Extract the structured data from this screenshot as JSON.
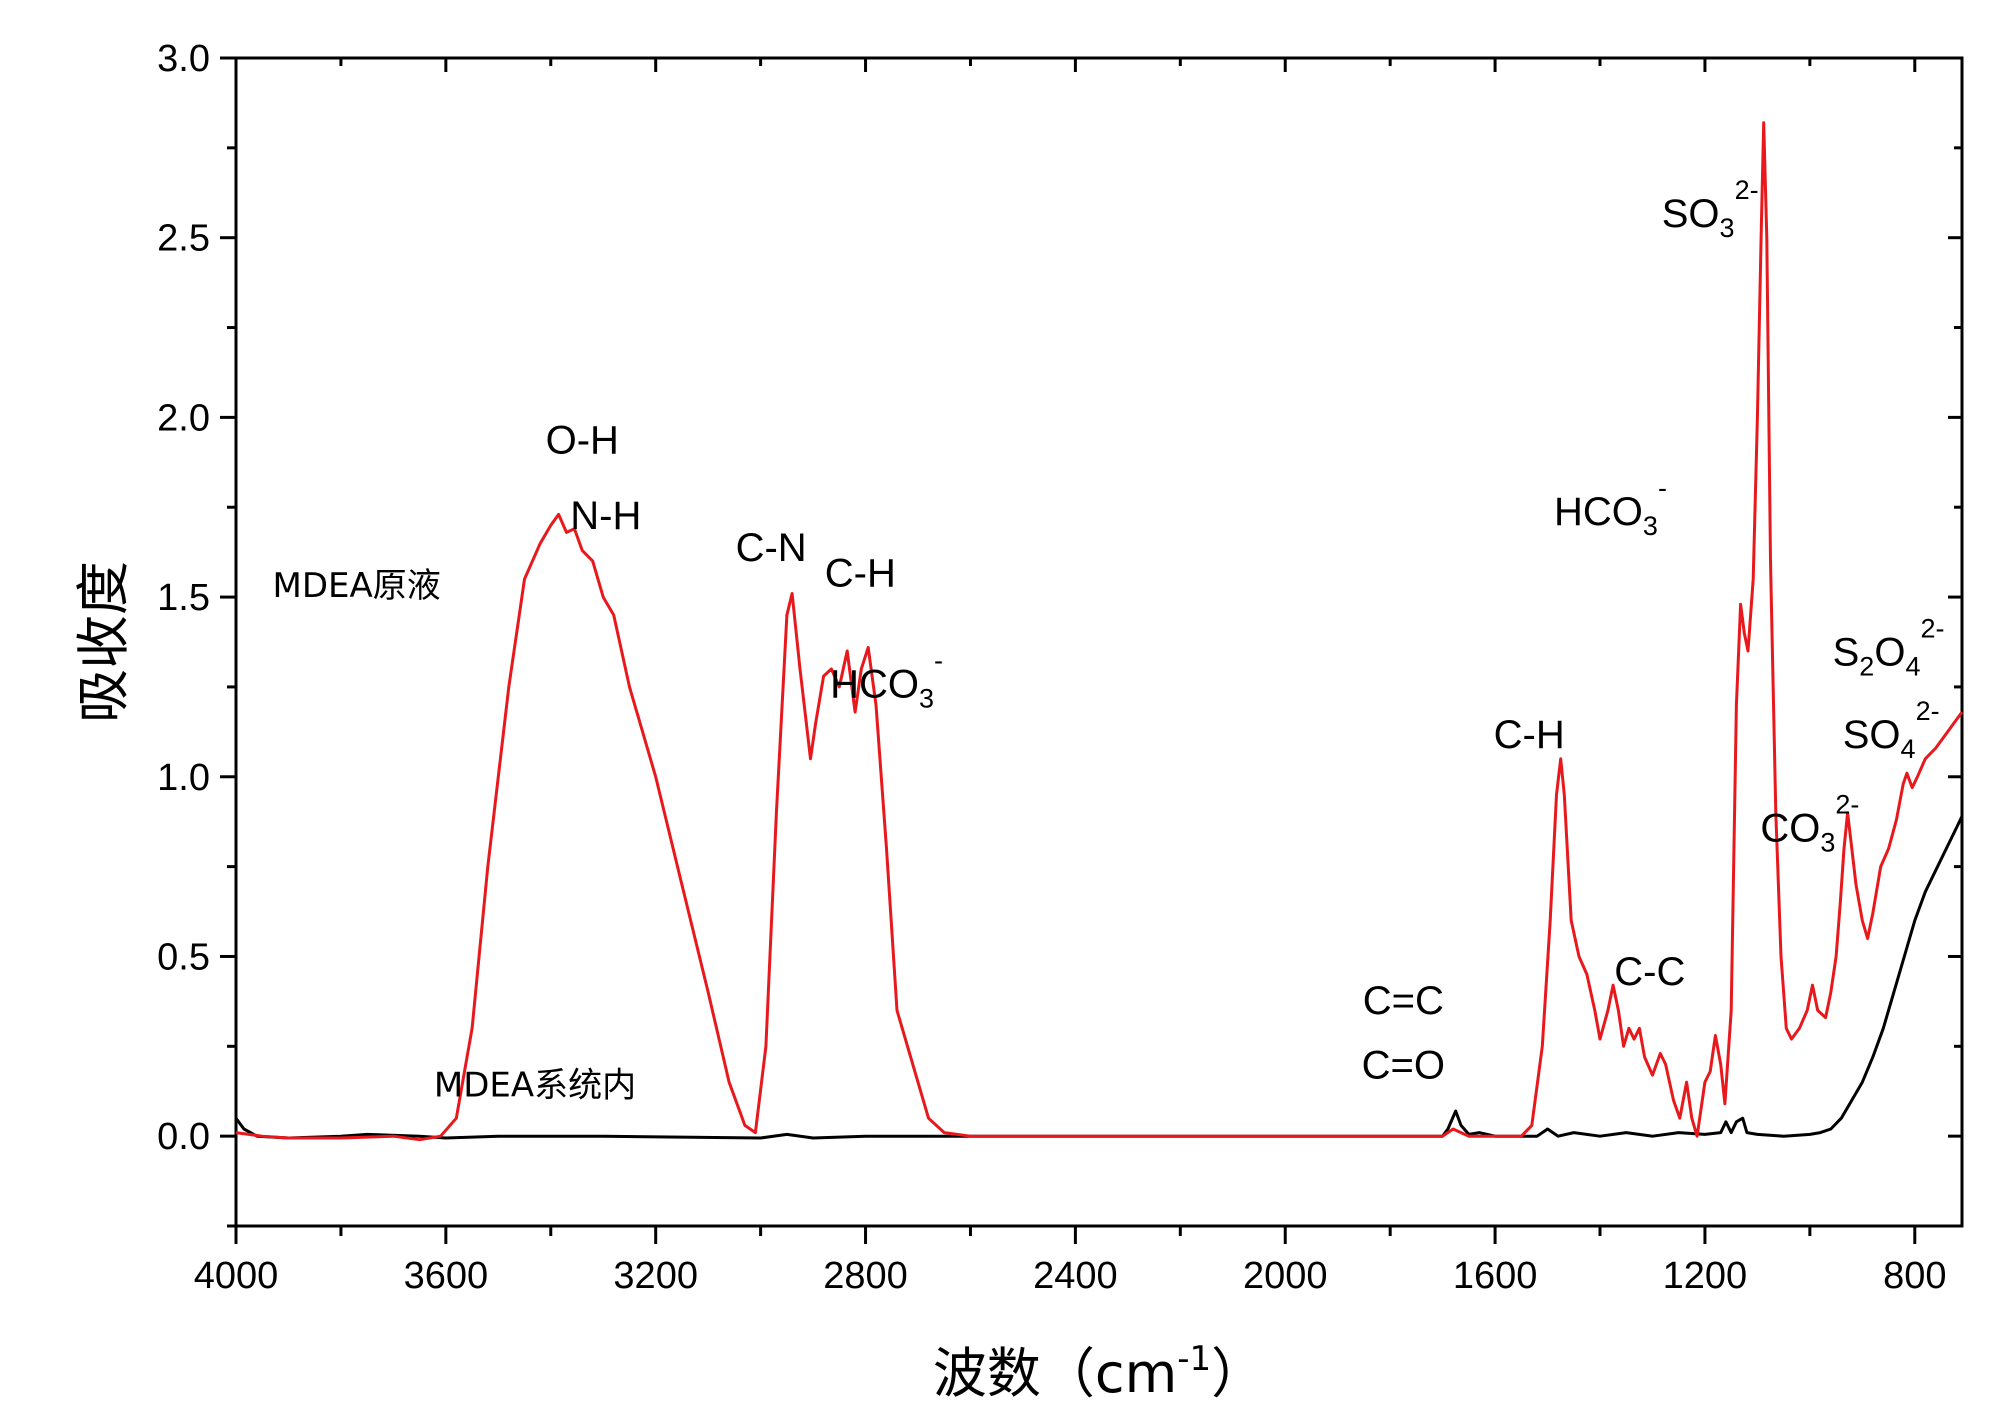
{
  "chart_data": {
    "type": "line",
    "xlabel": "波数（cm",
    "xlabel_sup": "-1",
    "xlabel_end": "）",
    "ylabel": "吸收度",
    "xlim": [
      4000,
      710
    ],
    "ylim": [
      -0.25,
      3.0
    ],
    "x_ticks": [
      4000,
      3600,
      3200,
      2800,
      2400,
      2000,
      1600,
      1200,
      800
    ],
    "x_tick_labels": [
      "4000",
      "3600",
      "3200",
      "2800",
      "2400",
      "2000",
      "1600",
      "1200",
      "800"
    ],
    "y_ticks": [
      0.0,
      0.5,
      1.0,
      1.5,
      2.0,
      2.5,
      3.0
    ],
    "y_tick_labels": [
      "0.0",
      "0.5",
      "1.0",
      "1.5",
      "2.0",
      "2.5",
      "3.0"
    ],
    "grid": false,
    "series": [
      {
        "name": "MDEA原液",
        "color": "#e8191c",
        "points": [
          [
            4000,
            0.01
          ],
          [
            3950,
            0.0
          ],
          [
            3900,
            -0.005
          ],
          [
            3800,
            -0.005
          ],
          [
            3700,
            0.0
          ],
          [
            3650,
            -0.01
          ],
          [
            3610,
            0.0
          ],
          [
            3580,
            0.05
          ],
          [
            3550,
            0.3
          ],
          [
            3520,
            0.75
          ],
          [
            3480,
            1.25
          ],
          [
            3450,
            1.55
          ],
          [
            3420,
            1.65
          ],
          [
            3400,
            1.7
          ],
          [
            3385,
            1.73
          ],
          [
            3370,
            1.68
          ],
          [
            3355,
            1.69
          ],
          [
            3340,
            1.63
          ],
          [
            3320,
            1.6
          ],
          [
            3300,
            1.5
          ],
          [
            3280,
            1.45
          ],
          [
            3250,
            1.25
          ],
          [
            3200,
            1.0
          ],
          [
            3150,
            0.7
          ],
          [
            3100,
            0.4
          ],
          [
            3060,
            0.15
          ],
          [
            3030,
            0.03
          ],
          [
            3010,
            0.01
          ],
          [
            2990,
            0.25
          ],
          [
            2970,
            0.9
          ],
          [
            2950,
            1.45
          ],
          [
            2940,
            1.51
          ],
          [
            2925,
            1.3
          ],
          [
            2905,
            1.05
          ],
          [
            2895,
            1.15
          ],
          [
            2880,
            1.28
          ],
          [
            2865,
            1.3
          ],
          [
            2850,
            1.25
          ],
          [
            2835,
            1.35
          ],
          [
            2820,
            1.18
          ],
          [
            2808,
            1.3
          ],
          [
            2795,
            1.36
          ],
          [
            2780,
            1.2
          ],
          [
            2760,
            0.8
          ],
          [
            2740,
            0.35
          ],
          [
            2720,
            0.25
          ],
          [
            2700,
            0.15
          ],
          [
            2680,
            0.05
          ],
          [
            2650,
            0.01
          ],
          [
            2600,
            0.0
          ],
          [
            2300,
            0.0
          ],
          [
            2000,
            0.0
          ],
          [
            1800,
            0.0
          ],
          [
            1700,
            0.0
          ],
          [
            1680,
            0.02
          ],
          [
            1650,
            0.0
          ],
          [
            1550,
            0.0
          ],
          [
            1530,
            0.03
          ],
          [
            1510,
            0.25
          ],
          [
            1495,
            0.6
          ],
          [
            1483,
            0.95
          ],
          [
            1475,
            1.05
          ],
          [
            1468,
            0.95
          ],
          [
            1455,
            0.6
          ],
          [
            1440,
            0.5
          ],
          [
            1425,
            0.45
          ],
          [
            1410,
            0.35
          ],
          [
            1400,
            0.27
          ],
          [
            1385,
            0.35
          ],
          [
            1375,
            0.42
          ],
          [
            1365,
            0.35
          ],
          [
            1355,
            0.25
          ],
          [
            1345,
            0.3
          ],
          [
            1335,
            0.27
          ],
          [
            1325,
            0.3
          ],
          [
            1315,
            0.22
          ],
          [
            1300,
            0.17
          ],
          [
            1285,
            0.23
          ],
          [
            1275,
            0.2
          ],
          [
            1260,
            0.1
          ],
          [
            1248,
            0.05
          ],
          [
            1235,
            0.15
          ],
          [
            1225,
            0.05
          ],
          [
            1215,
            0.0
          ],
          [
            1200,
            0.15
          ],
          [
            1190,
            0.18
          ],
          [
            1180,
            0.28
          ],
          [
            1170,
            0.2
          ],
          [
            1162,
            0.09
          ],
          [
            1150,
            0.35
          ],
          [
            1140,
            1.2
          ],
          [
            1132,
            1.48
          ],
          [
            1125,
            1.4
          ],
          [
            1118,
            1.35
          ],
          [
            1108,
            1.55
          ],
          [
            1100,
            2.0
          ],
          [
            1093,
            2.5
          ],
          [
            1088,
            2.82
          ],
          [
            1082,
            2.5
          ],
          [
            1075,
            1.6
          ],
          [
            1065,
            0.9
          ],
          [
            1055,
            0.5
          ],
          [
            1045,
            0.3
          ],
          [
            1035,
            0.27
          ],
          [
            1020,
            0.3
          ],
          [
            1005,
            0.35
          ],
          [
            995,
            0.42
          ],
          [
            985,
            0.35
          ],
          [
            970,
            0.33
          ],
          [
            960,
            0.4
          ],
          [
            950,
            0.5
          ],
          [
            942,
            0.65
          ],
          [
            935,
            0.8
          ],
          [
            928,
            0.9
          ],
          [
            920,
            0.8
          ],
          [
            912,
            0.7
          ],
          [
            900,
            0.6
          ],
          [
            890,
            0.55
          ],
          [
            880,
            0.62
          ],
          [
            865,
            0.75
          ],
          [
            850,
            0.8
          ],
          [
            835,
            0.88
          ],
          [
            822,
            0.98
          ],
          [
            815,
            1.01
          ],
          [
            805,
            0.97
          ],
          [
            795,
            1.0
          ],
          [
            780,
            1.05
          ],
          [
            760,
            1.08
          ],
          [
            740,
            1.12
          ],
          [
            725,
            1.15
          ],
          [
            710,
            1.18
          ]
        ]
      },
      {
        "name": "MDEA系统内",
        "color": "#000000",
        "points": [
          [
            4000,
            0.05
          ],
          [
            3985,
            0.02
          ],
          [
            3960,
            0.0
          ],
          [
            3900,
            -0.005
          ],
          [
            3800,
            0.0
          ],
          [
            3750,
            0.005
          ],
          [
            3650,
            0.0
          ],
          [
            3600,
            -0.005
          ],
          [
            3500,
            0.0
          ],
          [
            3300,
            0.0
          ],
          [
            3000,
            -0.005
          ],
          [
            2950,
            0.005
          ],
          [
            2900,
            -0.005
          ],
          [
            2800,
            0.0
          ],
          [
            2700,
            0.0
          ],
          [
            2500,
            0.0
          ],
          [
            2300,
            0.0
          ],
          [
            2100,
            0.0
          ],
          [
            1900,
            0.0
          ],
          [
            1750,
            0.0
          ],
          [
            1700,
            0.0
          ],
          [
            1690,
            0.02
          ],
          [
            1675,
            0.07
          ],
          [
            1665,
            0.03
          ],
          [
            1650,
            0.005
          ],
          [
            1630,
            0.01
          ],
          [
            1600,
            0.0
          ],
          [
            1550,
            0.0
          ],
          [
            1520,
            0.0
          ],
          [
            1500,
            0.02
          ],
          [
            1480,
            0.0
          ],
          [
            1450,
            0.01
          ],
          [
            1400,
            0.0
          ],
          [
            1350,
            0.01
          ],
          [
            1300,
            0.0
          ],
          [
            1250,
            0.01
          ],
          [
            1200,
            0.005
          ],
          [
            1170,
            0.01
          ],
          [
            1160,
            0.04
          ],
          [
            1150,
            0.01
          ],
          [
            1140,
            0.04
          ],
          [
            1128,
            0.05
          ],
          [
            1120,
            0.01
          ],
          [
            1100,
            0.005
          ],
          [
            1050,
            0.0
          ],
          [
            1000,
            0.005
          ],
          [
            980,
            0.01
          ],
          [
            960,
            0.02
          ],
          [
            940,
            0.05
          ],
          [
            920,
            0.1
          ],
          [
            900,
            0.15
          ],
          [
            880,
            0.22
          ],
          [
            860,
            0.3
          ],
          [
            840,
            0.4
          ],
          [
            820,
            0.5
          ],
          [
            800,
            0.6
          ],
          [
            780,
            0.68
          ],
          [
            760,
            0.74
          ],
          [
            740,
            0.8
          ],
          [
            720,
            0.86
          ],
          [
            710,
            0.89
          ]
        ]
      }
    ],
    "annotations": [
      {
        "base": "O-H",
        "sub": "",
        "sup": "",
        "x": 3340,
        "y": 1.9,
        "size": "normal"
      },
      {
        "base": "N-H",
        "sub": "",
        "sup": "",
        "x": 3295,
        "y": 1.69,
        "size": "normal"
      },
      {
        "base": "MDEA原液",
        "sub": "",
        "sup": "",
        "x": 3770,
        "y": 1.5,
        "size": "small"
      },
      {
        "base": "MDEA系统内",
        "sub": "",
        "sup": "",
        "x": 3430,
        "y": 0.11,
        "size": "small"
      },
      {
        "base": "C-N",
        "sub": "",
        "sup": "",
        "x": 2980,
        "y": 1.6,
        "size": "normal"
      },
      {
        "base": "C-H",
        "sub": "",
        "sup": "",
        "x": 2810,
        "y": 1.53,
        "size": "normal"
      },
      {
        "base": "HCO",
        "sub": "3",
        "sup": "-",
        "x": 2760,
        "y": 1.22,
        "size": "normal"
      },
      {
        "base": "C=C",
        "sub": "",
        "sup": "",
        "x": 1775,
        "y": 0.34,
        "size": "normal"
      },
      {
        "base": "C=O",
        "sub": "",
        "sup": "",
        "x": 1775,
        "y": 0.16,
        "size": "normal"
      },
      {
        "base": "C-H",
        "sub": "",
        "sup": "",
        "x": 1535,
        "y": 1.08,
        "size": "normal"
      },
      {
        "base": "C-C",
        "sub": "",
        "sup": "",
        "x": 1305,
        "y": 0.42,
        "size": "normal"
      },
      {
        "base": "HCO",
        "sub": "3",
        "sup": "-",
        "x": 1380,
        "y": 1.7,
        "size": "normal"
      },
      {
        "base": "SO",
        "sub": "3",
        "sup": "2-",
        "x": 1190,
        "y": 2.53,
        "size": "normal"
      },
      {
        "base": "S",
        "sub": "2",
        "sup": "",
        "x": 850,
        "y": 1.31,
        "size": "normal",
        "base2": "O",
        "sub2": "4",
        "sup2": "2-"
      },
      {
        "base": "SO",
        "sub": "4",
        "sup": "2-",
        "x": 845,
        "y": 1.08,
        "size": "normal"
      },
      {
        "base": "CO",
        "sub": "3",
        "sup": "2-",
        "x": 1000,
        "y": 0.82,
        "size": "normal"
      }
    ]
  }
}
